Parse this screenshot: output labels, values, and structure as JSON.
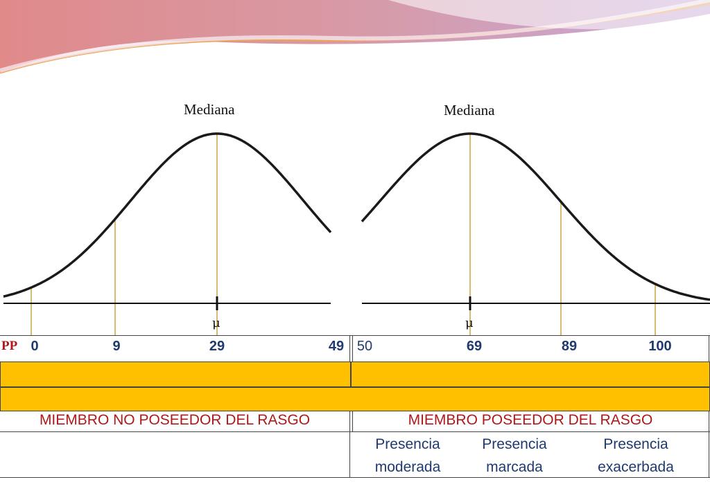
{
  "labels": {
    "median_left": "Mediana",
    "median_right": "Mediana",
    "mu_symbol": "μ",
    "pp": "PP"
  },
  "scale": {
    "left": [
      "0",
      "9",
      "29",
      "49"
    ],
    "right": [
      "50",
      "69",
      "89",
      "100"
    ]
  },
  "groups": {
    "non_member": "MIEMBRO NO POSEEDOR DEL RASGO",
    "member": "MIEMBRO POSEEDOR DEL RASGO"
  },
  "presence": [
    {
      "line1": "Presencia",
      "line2": "moderada"
    },
    {
      "line1": "Presencia",
      "line2": "marcada"
    },
    {
      "line1": "Presencia",
      "line2": "exacerbada"
    }
  ],
  "colors": {
    "curve": "#1a1a1a",
    "guide": "#c9a640",
    "band": "#ffc000",
    "text_red": "#b01818",
    "text_blue": "#1f3a6e"
  }
}
